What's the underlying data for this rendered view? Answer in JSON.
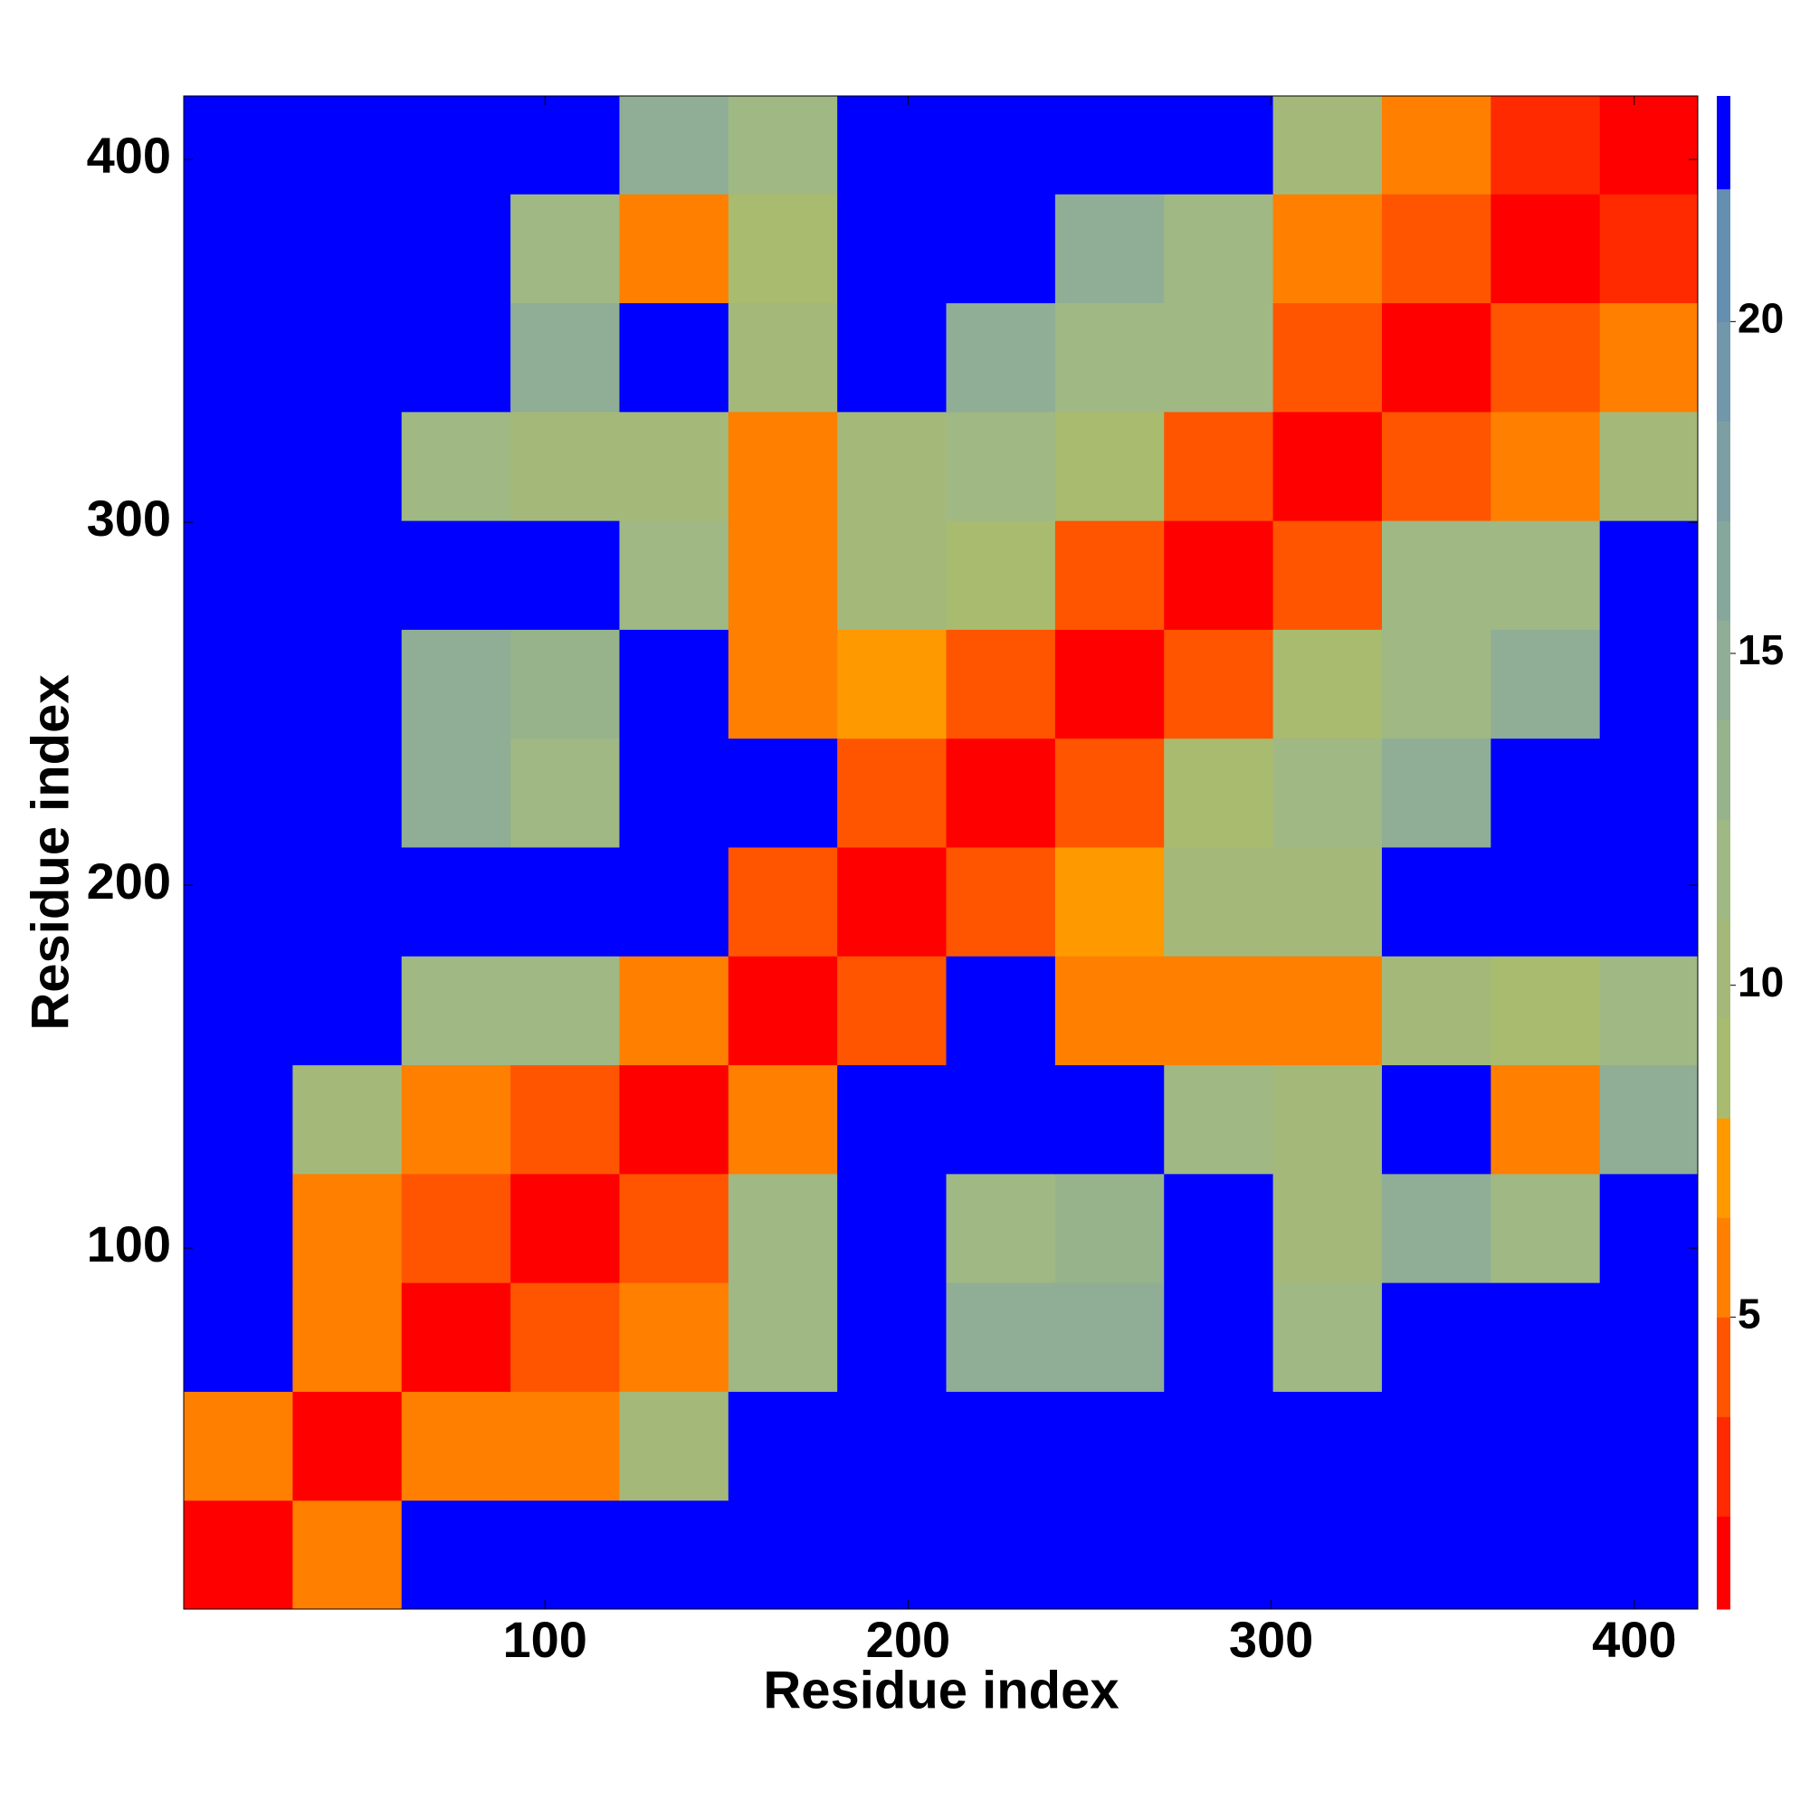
{
  "chart_data": {
    "type": "heatmap",
    "xlabel": "Residue index",
    "ylabel": "Residue index",
    "xlim": [
      0.5,
      417.5
    ],
    "ylim": [
      0.5,
      417.5
    ],
    "xticks": [
      100,
      200,
      300,
      400
    ],
    "yticks": [
      100,
      200,
      300,
      400
    ],
    "x_edges": [
      0.5,
      30.5,
      60.5,
      90.5,
      120.5,
      150.5,
      180.5,
      210.5,
      240.5,
      270.5,
      300.5,
      330.5,
      360.5,
      390.5,
      417.5
    ],
    "y_edges": [
      0.5,
      30.5,
      60.5,
      90.5,
      120.5,
      150.5,
      180.5,
      210.5,
      240.5,
      270.5,
      300.5,
      330.5,
      360.5,
      390.5,
      417.5
    ],
    "z": [
      [
        1,
        6,
        23,
        23,
        23,
        23,
        23,
        23,
        23,
        23,
        23,
        23,
        23,
        23
      ],
      [
        6,
        1,
        5,
        5,
        10,
        23,
        23,
        23,
        23,
        23,
        23,
        23,
        23,
        23
      ],
      [
        23,
        5,
        1,
        4,
        6,
        12,
        23,
        14,
        15,
        23,
        12,
        23,
        23,
        23
      ],
      [
        23,
        5,
        4,
        1,
        4,
        12,
        23,
        12,
        13,
        23,
        10,
        15,
        12,
        23
      ],
      [
        23,
        10,
        6,
        4,
        1,
        5,
        23,
        23,
        23,
        12,
        10,
        23,
        6,
        14
      ],
      [
        23,
        23,
        12,
        12,
        5,
        1,
        4,
        23,
        5,
        6,
        5,
        10,
        8,
        12
      ],
      [
        23,
        23,
        23,
        23,
        23,
        4,
        1,
        4,
        7,
        10,
        10,
        23,
        23,
        23
      ],
      [
        23,
        23,
        14,
        12,
        23,
        23,
        4,
        1,
        4,
        8,
        12,
        14,
        23,
        23
      ],
      [
        23,
        23,
        15,
        13,
        23,
        5,
        7,
        4,
        1,
        4,
        8,
        12,
        14,
        23
      ],
      [
        23,
        23,
        23,
        23,
        12,
        6,
        10,
        8,
        4,
        1,
        4,
        12,
        12,
        23
      ],
      [
        23,
        23,
        12,
        10,
        10,
        5,
        10,
        12,
        8,
        4,
        1,
        4,
        6,
        10
      ],
      [
        23,
        23,
        23,
        15,
        23,
        10,
        23,
        14,
        12,
        12,
        4,
        1,
        4,
        6
      ],
      [
        23,
        23,
        23,
        12,
        6,
        8,
        23,
        23,
        14,
        12,
        6,
        4,
        1,
        3
      ],
      [
        23,
        23,
        23,
        23,
        14,
        12,
        23,
        23,
        23,
        23,
        10,
        6,
        3,
        1
      ]
    ],
    "colorbar": {
      "levels": [
        0.6,
        2,
        3.5,
        5,
        6.5,
        8,
        9.5,
        11,
        12.5,
        14,
        15.5,
        17,
        18.5,
        20,
        22,
        23.4
      ],
      "colors": [
        "#ff0000",
        "#ff2a00",
        "#ff5500",
        "#ff7f00",
        "#ff9900",
        "#a9bb6e",
        "#a4b979",
        "#9fb884",
        "#97b38c",
        "#8fae95",
        "#86a89c",
        "#7d9fa3",
        "#7197aa",
        "#648fb0",
        "#0000ff"
      ],
      "ticks": [
        5,
        10,
        15,
        20
      ]
    }
  }
}
